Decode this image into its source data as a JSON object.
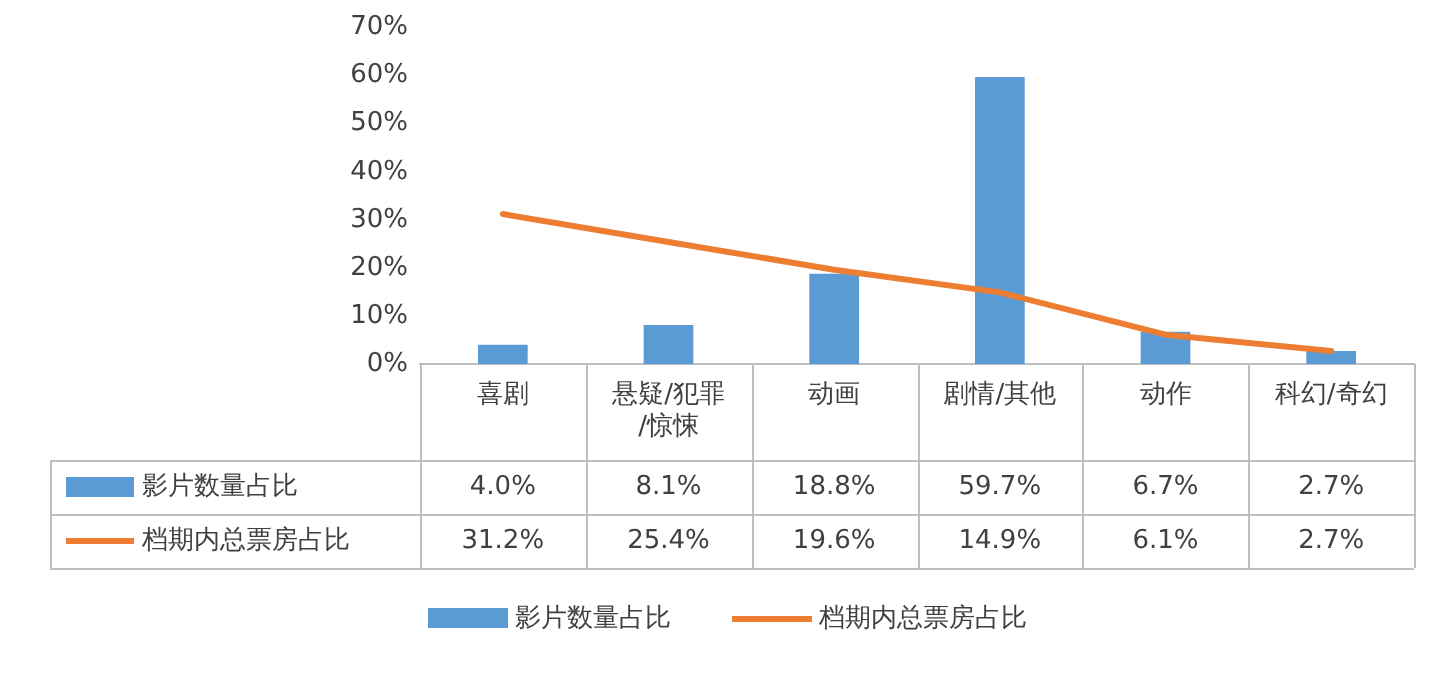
{
  "chart_data": {
    "type": "bar",
    "categories": [
      "喜剧",
      "悬疑/犯罪/惊悚",
      "动画",
      "剧情/其他",
      "动作",
      "科幻/奇幻"
    ],
    "series": [
      {
        "name": "影片数量占比",
        "color": "#5b9bd5",
        "values": [
          4.0,
          8.1,
          18.8,
          59.7,
          6.7,
          2.7
        ],
        "value_labels": [
          "4.0%",
          "8.1%",
          "18.8%",
          "59.7%",
          "6.7%",
          "2.7%"
        ]
      },
      {
        "name": "档期内总票房占比",
        "type": "line",
        "color": "#ed7d31",
        "values": [
          31.2,
          25.4,
          19.6,
          14.9,
          6.1,
          2.7
        ],
        "value_labels": [
          "31.2%",
          "25.4%",
          "19.6%",
          "14.9%",
          "6.1%",
          "2.7%"
        ]
      }
    ],
    "ylim": [
      0,
      70
    ],
    "yticks": [
      {
        "value": 0,
        "label": "0%"
      },
      {
        "value": 10,
        "label": "10%"
      },
      {
        "value": 20,
        "label": "20%"
      },
      {
        "value": 30,
        "label": "30%"
      },
      {
        "value": 40,
        "label": "40%"
      },
      {
        "value": 50,
        "label": "50%"
      },
      {
        "value": 60,
        "label": "60%"
      },
      {
        "value": 70,
        "label": "70%"
      }
    ],
    "grid": false,
    "legend": "bottom",
    "marker": "none"
  }
}
